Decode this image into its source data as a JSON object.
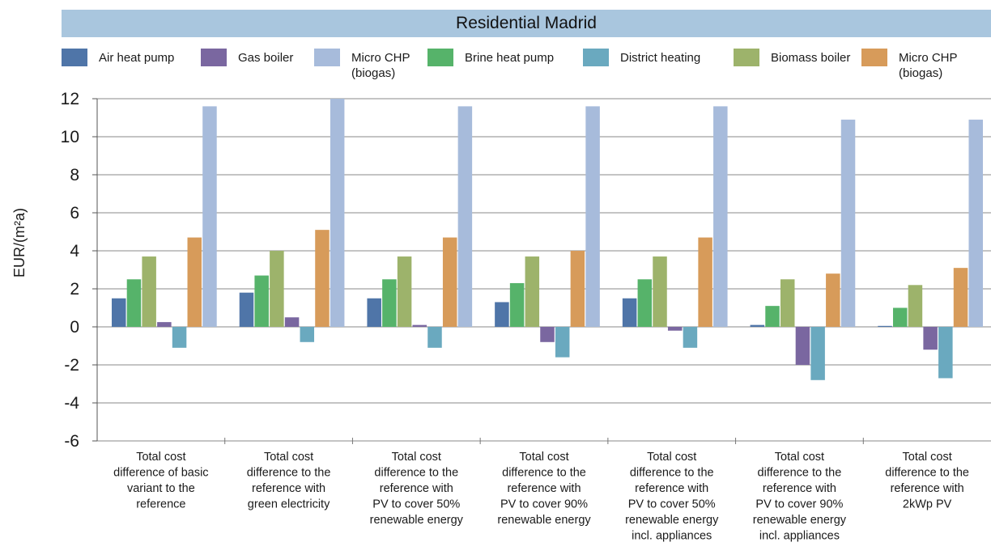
{
  "chart_data": {
    "type": "bar",
    "title": "Residential Madrid",
    "ylabel": "EUR/(m²a)",
    "ylim": [
      -6,
      12
    ],
    "y_ticks": [
      "12",
      "10",
      "8",
      "6",
      "4",
      "2",
      "0",
      "-2",
      "-4",
      "-6"
    ],
    "grid": true,
    "legend_position": "top",
    "categories": [
      [
        "Total cost",
        "difference of basic",
        "variant to the",
        "reference"
      ],
      [
        "Total cost",
        "difference to the",
        "reference with",
        "green electricity"
      ],
      [
        "Total cost",
        "difference to the",
        "reference with",
        "PV to cover 50%",
        "renewable energy"
      ],
      [
        "Total cost",
        "difference to the",
        "reference with",
        "PV to cover 90%",
        "renewable energy"
      ],
      [
        "Total cost",
        "difference to the",
        "reference with",
        "PV to cover 50%",
        "renewable energy",
        "incl. appliances"
      ],
      [
        "Total cost",
        "difference to the",
        "reference with",
        "PV to cover 90%",
        "renewable energy",
        "incl. appliances"
      ],
      [
        "Total cost",
        "difference to the",
        "reference with",
        "2kWp PV"
      ]
    ],
    "series": [
      {
        "name": "Air heat pump",
        "color": "#4f75a8",
        "values": [
          1.5,
          1.8,
          1.5,
          1.3,
          1.5,
          0.1,
          0.05
        ]
      },
      {
        "name": "Gas boiler",
        "color": "#7a67a0",
        "values": [
          0.25,
          0.5,
          0.1,
          -0.8,
          -0.2,
          -2.0,
          -1.2
        ]
      },
      {
        "name": "Micro CHP\n(biogas)",
        "color": "#a7bbdb",
        "values": [
          11.6,
          12.0,
          11.6,
          11.6,
          11.6,
          10.9,
          10.9
        ]
      },
      {
        "name": "Brine heat pump",
        "color": "#56b36a",
        "values": [
          2.5,
          2.7,
          2.5,
          2.3,
          2.5,
          1.1,
          1.0
        ]
      },
      {
        "name": "District heating",
        "color": "#6aa9bf",
        "values": [
          -1.1,
          -0.8,
          -1.1,
          -1.6,
          -1.1,
          -2.8,
          -2.7
        ]
      },
      {
        "name": "Biomass boiler",
        "color": "#9db36b",
        "values": [
          3.7,
          4.0,
          3.7,
          3.7,
          3.7,
          2.5,
          2.2
        ]
      },
      {
        "name": "Micro CHP\n(biogas)",
        "color": "#d79b5a",
        "values": [
          4.7,
          5.1,
          4.7,
          4.0,
          4.7,
          2.8,
          3.1
        ]
      }
    ],
    "bar_order": [
      0,
      3,
      5,
      1,
      4,
      6,
      2
    ]
  }
}
